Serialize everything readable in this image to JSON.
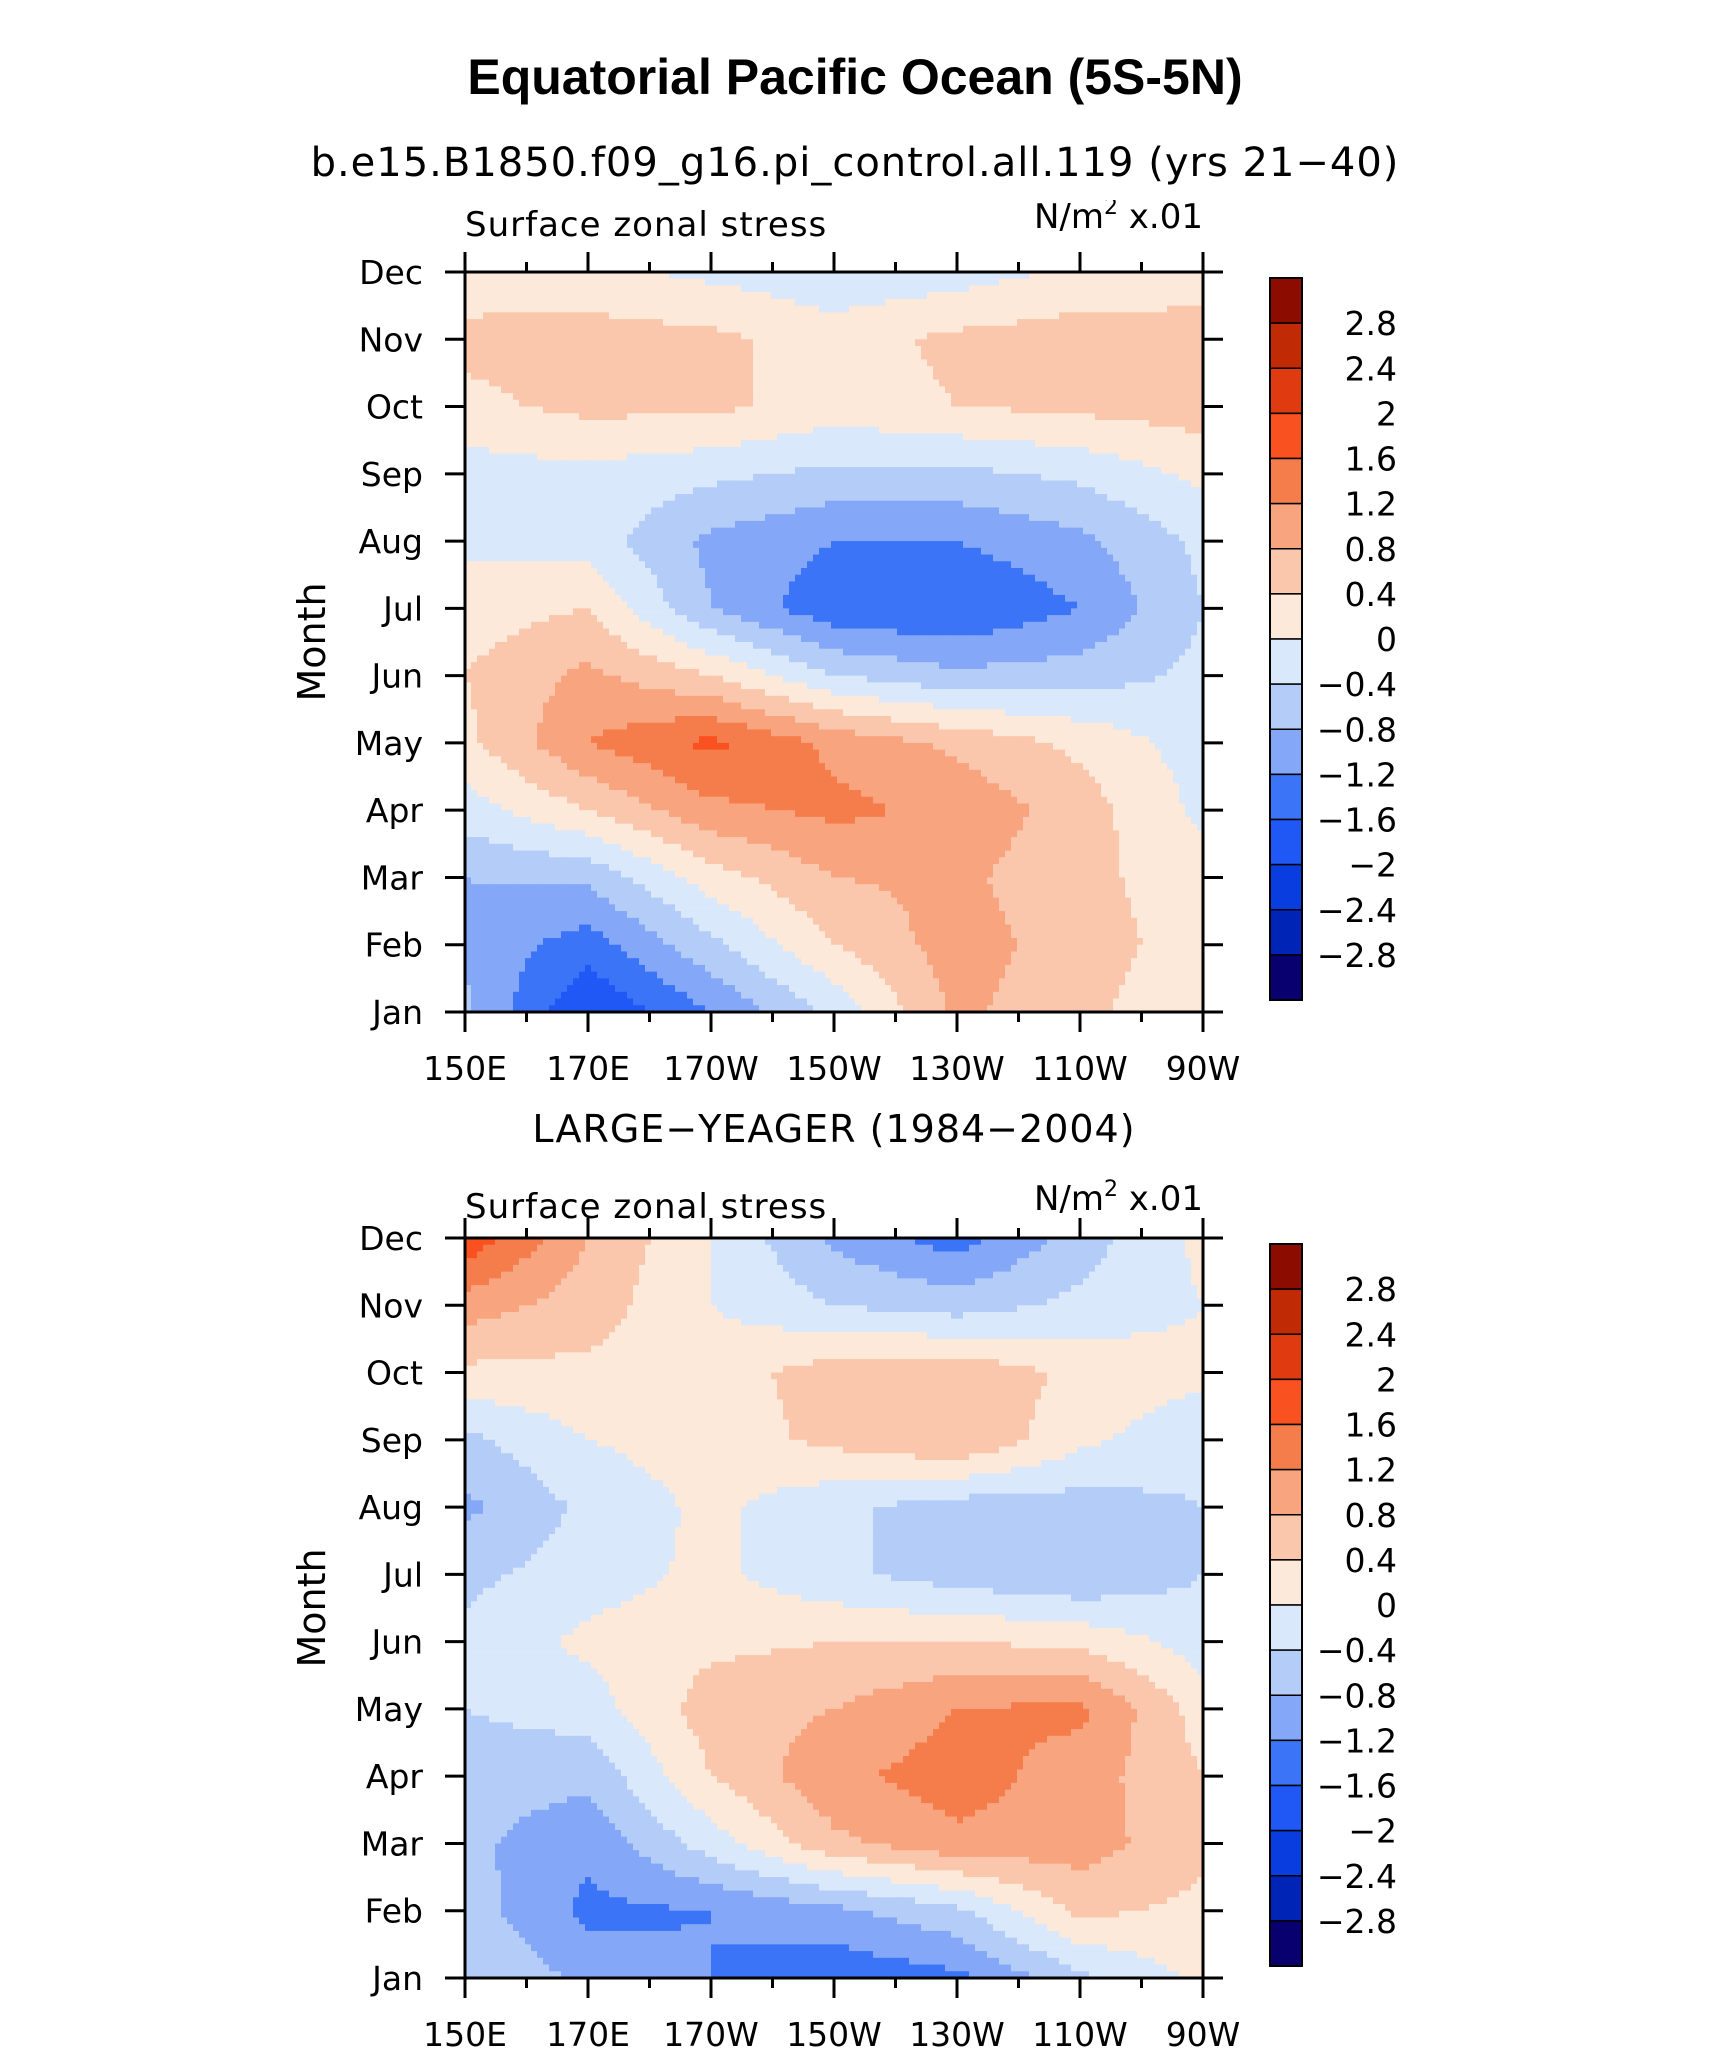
{
  "title": "Equatorial Pacific Ocean (5S-5N)",
  "subtitle": "b.e15.B1850.f09_g16.pi_control.all.119 (yrs 21−40)",
  "chart_data": [
    {
      "type": "contour",
      "panel_title": "",
      "variable": "Surface zonal stress",
      "units_base": "N/m",
      "units_exp": "2",
      "units_scale": "x.01",
      "ylabel": "Month",
      "months": [
        "Jan",
        "Feb",
        "Mar",
        "Apr",
        "May",
        "Jun",
        "Jul",
        "Aug",
        "Sep",
        "Oct",
        "Nov",
        "Dec"
      ],
      "xticks": [
        "150E",
        "170E",
        "170W",
        "150W",
        "130W",
        "110W",
        "90W"
      ],
      "xrange_lon": [
        150,
        270
      ],
      "levels": [
        -2.8,
        -2.4,
        -2,
        -1.6,
        -1.2,
        -0.8,
        -0.4,
        0,
        0.4,
        0.8,
        1.2,
        1.6,
        2,
        2.4,
        2.8
      ],
      "level_labels": [
        "2.8",
        "2.4",
        "2",
        "1.6",
        "1.2",
        "0.8",
        "0.4",
        "0",
        "−0.4",
        "−0.8",
        "−1.2",
        "−1.6",
        "−2",
        "−2.4",
        "−2.8"
      ],
      "colors": [
        "#08006e",
        "#0024b5",
        "#0a3de0",
        "#1f58f5",
        "#3c74f7",
        "#84a8f7",
        "#b4ccf8",
        "#d9e8fa",
        "#fde9d9",
        "#fac7ad",
        "#f8a47f",
        "#f57d4c",
        "#fa5120",
        "#e03b10",
        "#c02a05",
        "#8c0c00"
      ],
      "grid_lon": [
        150,
        170,
        190,
        210,
        230,
        250,
        270
      ],
      "grid": [
        [
          -0.7,
          -2.0,
          -1.2,
          -0.3,
          0.9,
          0.5,
          0.1
        ],
        [
          -0.9,
          -1.4,
          -0.5,
          0.4,
          1.0,
          0.6,
          0.2
        ],
        [
          -0.8,
          -0.7,
          0.2,
          0.8,
          0.9,
          0.5,
          0.2
        ],
        [
          -0.2,
          0.4,
          1.1,
          1.3,
          1.1,
          0.6,
          -0.1
        ],
        [
          0.3,
          1.2,
          1.7,
          1.1,
          0.7,
          0.3,
          -0.2
        ],
        [
          0.4,
          0.9,
          0.4,
          -0.4,
          -0.7,
          -0.6,
          -0.3
        ],
        [
          0.2,
          0.4,
          -0.8,
          -1.5,
          -1.6,
          -1.2,
          -0.4
        ],
        [
          -0.1,
          -0.2,
          -0.9,
          -1.2,
          -1.2,
          -0.9,
          -0.3
        ],
        [
          -0.2,
          -0.1,
          -0.3,
          -0.5,
          -0.5,
          -0.3,
          0.1
        ],
        [
          0.3,
          0.5,
          0.5,
          0.2,
          0.4,
          0.5,
          0.6
        ],
        [
          0.5,
          0.6,
          0.5,
          0.2,
          0.5,
          0.6,
          0.5
        ],
        [
          0.2,
          0.1,
          -0.1,
          -0.3,
          -0.2,
          0.1,
          0.3
        ]
      ]
    },
    {
      "type": "contour",
      "panel_title": "LARGE−YEAGER (1984−2004)",
      "variable": "Surface zonal stress",
      "units_base": "N/m",
      "units_exp": "2",
      "units_scale": "x.01",
      "ylabel": "Month",
      "months": [
        "Jan",
        "Feb",
        "Mar",
        "Apr",
        "May",
        "Jun",
        "Jul",
        "Aug",
        "Sep",
        "Oct",
        "Nov",
        "Dec"
      ],
      "xticks": [
        "150E",
        "170E",
        "170W",
        "150W",
        "130W",
        "110W",
        "90W"
      ],
      "xrange_lon": [
        150,
        270
      ],
      "levels": [
        -2.8,
        -2.4,
        -2,
        -1.6,
        -1.2,
        -0.8,
        -0.4,
        0,
        0.4,
        0.8,
        1.2,
        1.6,
        2,
        2.4,
        2.8
      ],
      "level_labels": [
        "2.8",
        "2.4",
        "2",
        "1.6",
        "1.2",
        "0.8",
        "0.4",
        "0",
        "−0.4",
        "−0.8",
        "−1.2",
        "−1.6",
        "−2",
        "−2.4",
        "−2.8"
      ],
      "colors": [
        "#08006e",
        "#0024b5",
        "#0a3de0",
        "#1f58f5",
        "#3c74f7",
        "#84a8f7",
        "#b4ccf8",
        "#d9e8fa",
        "#fde9d9",
        "#fac7ad",
        "#f8a47f",
        "#f57d4c",
        "#fa5120",
        "#e03b10",
        "#c02a05",
        "#8c0c00"
      ],
      "grid_lon": [
        150,
        170,
        190,
        210,
        230,
        250,
        270
      ],
      "grid": [
        [
          -0.4,
          -0.9,
          -1.2,
          -1.5,
          -1.3,
          -0.5,
          0.1
        ],
        [
          -0.6,
          -1.3,
          -1.2,
          -0.9,
          -0.5,
          0.5,
          0.3
        ],
        [
          -0.7,
          -1.1,
          -0.2,
          0.7,
          1.1,
          1.0,
          0.5
        ],
        [
          -0.6,
          -0.7,
          0.4,
          1.1,
          1.4,
          1.0,
          0.4
        ],
        [
          -0.4,
          -0.2,
          0.6,
          0.8,
          1.2,
          1.3,
          0.2
        ],
        [
          -0.3,
          0.1,
          0.3,
          0.4,
          0.4,
          0.3,
          -0.2
        ],
        [
          -0.5,
          -0.2,
          0.1,
          -0.3,
          -0.6,
          -0.8,
          -0.4
        ],
        [
          -0.9,
          -0.3,
          0.1,
          -0.3,
          -0.6,
          -0.6,
          -0.4
        ],
        [
          -0.5,
          0.0,
          0.2,
          0.5,
          0.8,
          0.1,
          -0.3
        ],
        [
          0.3,
          0.3,
          0.2,
          0.6,
          0.7,
          0.3,
          0.1
        ],
        [
          1.0,
          0.6,
          0.0,
          -0.4,
          -0.6,
          -0.3,
          0.0
        ],
        [
          1.9,
          0.8,
          0.0,
          -0.9,
          -1.4,
          -0.6,
          0.1
        ]
      ]
    }
  ]
}
